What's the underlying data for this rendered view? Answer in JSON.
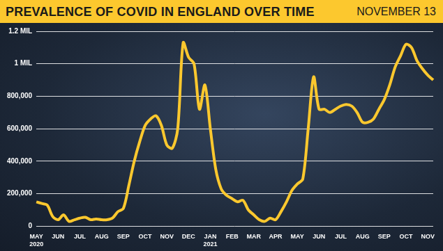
{
  "chart_data": {
    "type": "line",
    "title": "PREVALENCE OF COVID IN ENGLAND OVER TIME",
    "subtitle": "NOVEMBER 13",
    "categories": [
      "MAY 2020",
      null,
      null,
      null,
      "JUN",
      null,
      null,
      null,
      "JUL",
      null,
      null,
      null,
      "AUG",
      null,
      null,
      null,
      "SEP",
      null,
      null,
      null,
      "OCT",
      null,
      null,
      null,
      "NOV",
      null,
      null,
      null,
      "DEC",
      null,
      null,
      null,
      "JAN 2021",
      null,
      null,
      null,
      "FEB",
      null,
      null,
      null,
      "MAR",
      null,
      null,
      null,
      "APR",
      null,
      null,
      null,
      "MAY",
      null,
      null,
      null,
      "JUN",
      null,
      null,
      null,
      "JUL",
      null,
      null,
      null,
      "AUG",
      null,
      null,
      null,
      "SEP",
      null,
      null,
      null,
      "OCT",
      null,
      null,
      null,
      "NOV",
      null
    ],
    "values": [
      150000,
      140000,
      130000,
      60000,
      40000,
      70000,
      30000,
      40000,
      50000,
      55000,
      40000,
      45000,
      40000,
      40000,
      50000,
      90000,
      110000,
      250000,
      400000,
      520000,
      620000,
      660000,
      680000,
      620000,
      500000,
      480000,
      600000,
      1130000,
      1040000,
      1000000,
      720000,
      870000,
      600000,
      350000,
      230000,
      190000,
      170000,
      150000,
      160000,
      100000,
      70000,
      40000,
      30000,
      50000,
      40000,
      90000,
      150000,
      220000,
      260000,
      290000,
      600000,
      920000,
      720000,
      720000,
      700000,
      720000,
      740000,
      750000,
      740000,
      700000,
      640000,
      640000,
      660000,
      720000,
      780000,
      870000,
      980000,
      1050000,
      1120000,
      1100000,
      1020000,
      970000,
      930000,
      900000
    ],
    "color": "#fcc82e",
    "ylim": [
      0,
      1200000
    ],
    "yticks": [
      0,
      {
        "value": 200000,
        "label": "200,000"
      },
      {
        "value": 400000,
        "label": "400,000"
      },
      {
        "value": 600000,
        "label": "600,000"
      },
      {
        "value": 800000,
        "label": "800,000"
      },
      {
        "value": 1000000,
        "label": "1 MIL"
      },
      {
        "value": 1200000,
        "label": "1.2 MIL"
      }
    ],
    "grid": true
  }
}
